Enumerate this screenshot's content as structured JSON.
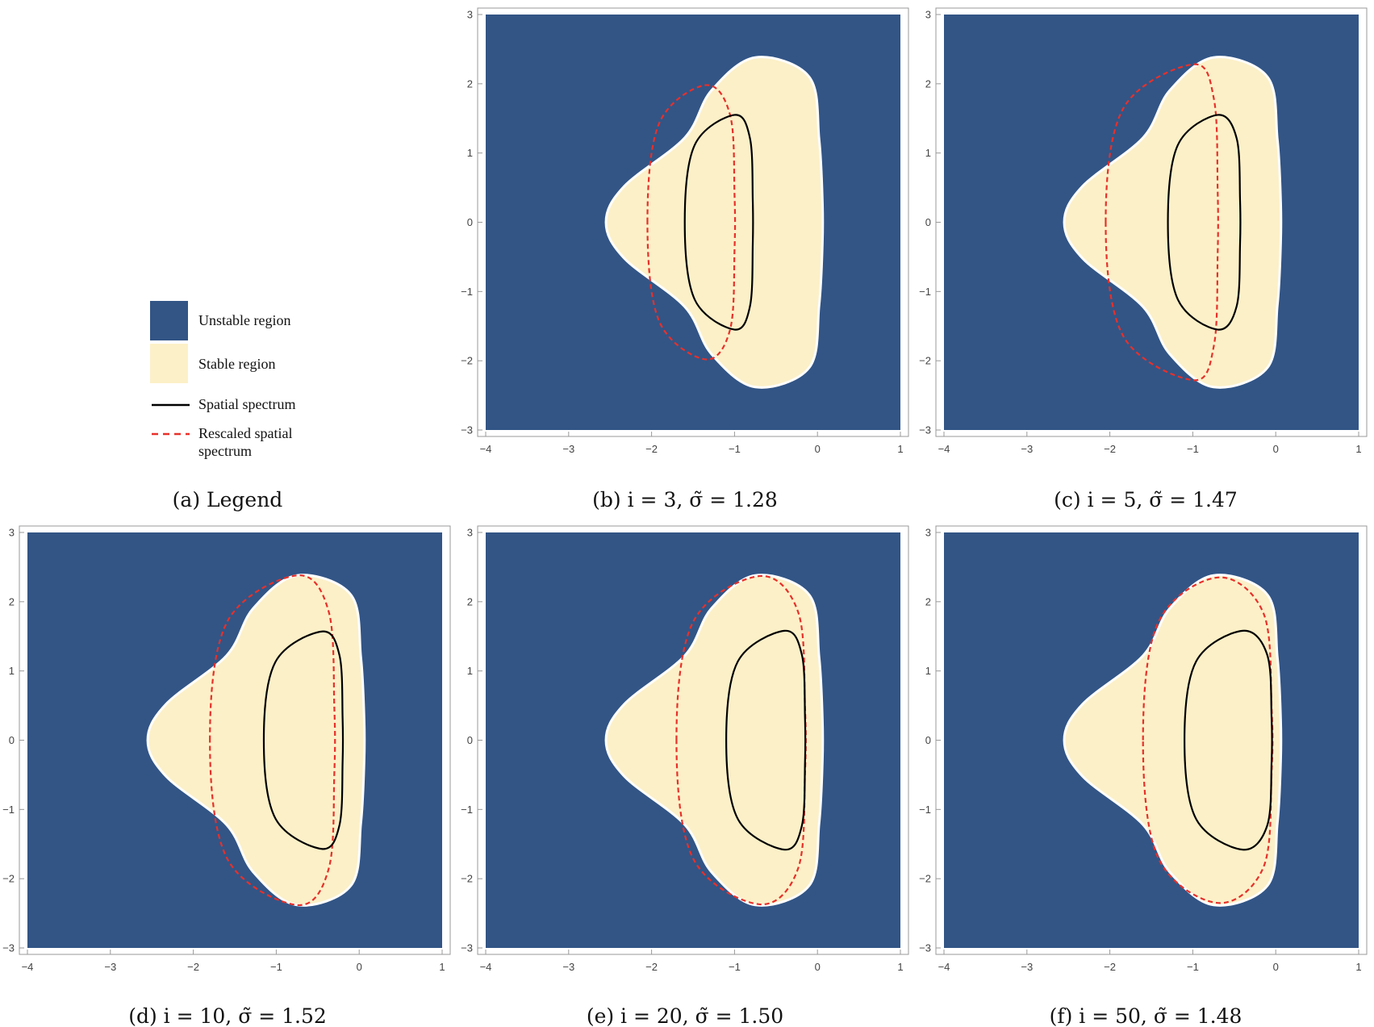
{
  "colors": {
    "unstable": "#325586",
    "stable": "#fcf0c8",
    "boundary": "#ffffff",
    "spatial": "#000000",
    "rescaled": "#e8302a",
    "frame": "#999999"
  },
  "legend": {
    "caption": "(a) Legend",
    "items": [
      {
        "label": "Unstable region",
        "kind": "swatch",
        "color": "#325586"
      },
      {
        "label": "Stable region",
        "kind": "swatch",
        "color": "#fcf0c8"
      },
      {
        "label": "Spatial spectrum",
        "kind": "solid-line",
        "color": "#000000"
      },
      {
        "label": "Rescaled spatial",
        "label2": "spectrum",
        "kind": "dashed-line",
        "color": "#e8302a"
      }
    ]
  },
  "chart_data": [
    {
      "panel": "b",
      "type": "region-plot",
      "caption": "(b) i = 3, σ̃ = 1.28",
      "i": 3,
      "sigma_tilde": 1.28,
      "xlim": [
        -4,
        1
      ],
      "ylim": [
        -3,
        3
      ],
      "xticks": [
        -4,
        -3,
        -2,
        -1,
        0,
        1
      ],
      "yticks": [
        -3,
        -2,
        -1,
        0,
        1,
        2,
        3
      ],
      "stable_region": {
        "x_min": -2.55,
        "x_max": 0.08,
        "y_extent": 2.38,
        "top_x": -0.75
      },
      "spatial_spectrum": {
        "x_min": -1.6,
        "x_max": -0.78,
        "y_extent": 1.55,
        "top_x": -1.0
      },
      "rescaled_spectrum": {
        "x_min": -2.05,
        "x_max": -1.0,
        "y_extent": 1.98,
        "top_x": -1.35
      }
    },
    {
      "panel": "c",
      "type": "region-plot",
      "caption": "(c) i = 5, σ̃ = 1.47",
      "i": 5,
      "sigma_tilde": 1.47,
      "xlim": [
        -4,
        1
      ],
      "ylim": [
        -3,
        3
      ],
      "xticks": [
        -4,
        -3,
        -2,
        -1,
        0,
        1
      ],
      "yticks": [
        -3,
        -2,
        -1,
        0,
        1,
        2,
        3
      ],
      "stable_region": {
        "x_min": -2.55,
        "x_max": 0.08,
        "y_extent": 2.38,
        "top_x": -0.75
      },
      "spatial_spectrum": {
        "x_min": -1.3,
        "x_max": -0.43,
        "y_extent": 1.55,
        "top_x": -0.7
      },
      "rescaled_spectrum": {
        "x_min": -2.05,
        "x_max": -0.7,
        "y_extent": 2.28,
        "top_x": -1.0
      }
    },
    {
      "panel": "d",
      "type": "region-plot",
      "caption": "(d) i = 10, σ̃ = 1.52",
      "i": 10,
      "sigma_tilde": 1.52,
      "xlim": [
        -4,
        1
      ],
      "ylim": [
        -3,
        3
      ],
      "xticks": [
        -4,
        -3,
        -2,
        -1,
        0,
        1
      ],
      "yticks": [
        -3,
        -2,
        -1,
        0,
        1,
        2,
        3
      ],
      "stable_region": {
        "x_min": -2.55,
        "x_max": 0.08,
        "y_extent": 2.38,
        "top_x": -0.75
      },
      "spatial_spectrum": {
        "x_min": -1.15,
        "x_max": -0.2,
        "y_extent": 1.57,
        "top_x": -0.45
      },
      "rescaled_spectrum": {
        "x_min": -1.8,
        "x_max": -0.3,
        "y_extent": 2.38,
        "top_x": -0.75
      }
    },
    {
      "panel": "e",
      "type": "region-plot",
      "caption": "(e) i = 20, σ̃ = 1.50",
      "i": 20,
      "sigma_tilde": 1.5,
      "xlim": [
        -4,
        1
      ],
      "ylim": [
        -3,
        3
      ],
      "xticks": [
        -4,
        -3,
        -2,
        -1,
        0,
        1
      ],
      "yticks": [
        -3,
        -2,
        -1,
        0,
        1,
        2,
        3
      ],
      "stable_region": {
        "x_min": -2.55,
        "x_max": 0.08,
        "y_extent": 2.38,
        "top_x": -0.75
      },
      "spatial_spectrum": {
        "x_min": -1.1,
        "x_max": -0.15,
        "y_extent": 1.58,
        "top_x": -0.4
      },
      "rescaled_spectrum": {
        "x_min": -1.7,
        "x_max": -0.15,
        "y_extent": 2.37,
        "top_x": -0.7
      }
    },
    {
      "panel": "f",
      "type": "region-plot",
      "caption": "(f) i = 50, σ̃ = 1.48",
      "i": 50,
      "sigma_tilde": 1.48,
      "xlim": [
        -4,
        1
      ],
      "ylim": [
        -3,
        3
      ],
      "xticks": [
        -4,
        -3,
        -2,
        -1,
        0,
        1
      ],
      "yticks": [
        -3,
        -2,
        -1,
        0,
        1,
        2,
        3
      ],
      "stable_region": {
        "x_min": -2.55,
        "x_max": 0.08,
        "y_extent": 2.38,
        "top_x": -0.75
      },
      "spatial_spectrum": {
        "x_min": -1.1,
        "x_max": -0.05,
        "y_extent": 1.58,
        "top_x": -0.4
      },
      "rescaled_spectrum": {
        "x_min": -1.6,
        "x_max": -0.05,
        "y_extent": 2.35,
        "top_x": -0.7
      }
    }
  ]
}
